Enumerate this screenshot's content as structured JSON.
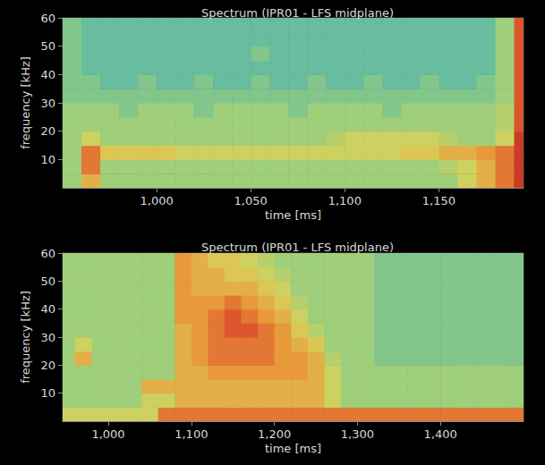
{
  "chart_data": [
    {
      "type": "heatmap",
      "title": "Spectrum (IPR01 - LFS midplane)",
      "x_label": "time [ms]",
      "y_label": "frequency [kHz]",
      "xlim": [
        950,
        1195
      ],
      "ylim": [
        0,
        60
      ],
      "xticks": [
        1000,
        1050,
        1100,
        1150
      ],
      "yticks": [
        10,
        20,
        30,
        40,
        50,
        60
      ],
      "zlim": [
        0,
        10
      ],
      "x_edges": [
        950,
        960,
        970,
        980,
        990,
        1000,
        1010,
        1020,
        1030,
        1040,
        1050,
        1060,
        1070,
        1080,
        1090,
        1100,
        1110,
        1120,
        1130,
        1140,
        1150,
        1160,
        1170,
        1180,
        1190,
        1195
      ],
      "y_edges": [
        0,
        5,
        10,
        15,
        20,
        25,
        30,
        35,
        40,
        45,
        50,
        55,
        60
      ],
      "z": [
        [
          5,
          7,
          5,
          5,
          5,
          5,
          5,
          5,
          5,
          5,
          5,
          5,
          5,
          5,
          5,
          5,
          5,
          5,
          5,
          5,
          5,
          6,
          7,
          8,
          9
        ],
        [
          5,
          8,
          5,
          5,
          5,
          5,
          5,
          5,
          5,
          5,
          5,
          5,
          5,
          5,
          5,
          5,
          5,
          5,
          5,
          5,
          5.5,
          6,
          7,
          8,
          9
        ],
        [
          5,
          8,
          6.5,
          6.5,
          6.5,
          6.5,
          6,
          6,
          6,
          6,
          6,
          6,
          6,
          6,
          6,
          6,
          6,
          6,
          6.5,
          6.5,
          7,
          7,
          7.5,
          8,
          9
        ],
        [
          5,
          6,
          5,
          5,
          5,
          5,
          5,
          5,
          5,
          5,
          5,
          5,
          5,
          5,
          5.5,
          6,
          6,
          6,
          6,
          6,
          5.5,
          5,
          5,
          6,
          9
        ],
        [
          5,
          5,
          5,
          5,
          5,
          5,
          5,
          5,
          5,
          5,
          5,
          5,
          5,
          5,
          5,
          5,
          5,
          5,
          5,
          5,
          5,
          5,
          5,
          5.5,
          8.5
        ],
        [
          5,
          5,
          5,
          4.5,
          5,
          5,
          5,
          4.5,
          5,
          5,
          5,
          5,
          4.5,
          5,
          5,
          5,
          5,
          4.5,
          5,
          5,
          5,
          5,
          5,
          5.5,
          8.5
        ],
        [
          4.5,
          4.5,
          4.5,
          4.5,
          4.5,
          4.5,
          4.5,
          4.5,
          4.5,
          4.5,
          4.5,
          4.5,
          4.5,
          4.5,
          4.5,
          4.5,
          4.5,
          4.5,
          4.5,
          4.5,
          4.5,
          4.5,
          4.5,
          5,
          8.5
        ],
        [
          4.5,
          4.5,
          4,
          4,
          4.5,
          4,
          4,
          4.5,
          4,
          4,
          4.5,
          4,
          4,
          4.5,
          4,
          4,
          4.5,
          4,
          4,
          4.5,
          4,
          4,
          4.5,
          5,
          8.5
        ],
        [
          4.5,
          4,
          4,
          4,
          4,
          4,
          4,
          4,
          4,
          4,
          4,
          4,
          4,
          4,
          4,
          4,
          4,
          4,
          4,
          4,
          4,
          4,
          4,
          5,
          8.5
        ],
        [
          4.5,
          4,
          4,
          4,
          4,
          4,
          4,
          4,
          4,
          4,
          4.5,
          4,
          4,
          4,
          4,
          4,
          4,
          4,
          4,
          4,
          4,
          4,
          4,
          5,
          8.5
        ],
        [
          4.5,
          4,
          4,
          4,
          4,
          4,
          4,
          4,
          4,
          4,
          4,
          4,
          4,
          4,
          4,
          4,
          4,
          4,
          4,
          4,
          4,
          4,
          4,
          5,
          8.5
        ],
        [
          4.5,
          4,
          4,
          4,
          4,
          4,
          4,
          4,
          4,
          4,
          4,
          4,
          4,
          4,
          4,
          4,
          4,
          4,
          4,
          4,
          4,
          4,
          4,
          5,
          8.5
        ]
      ]
    },
    {
      "type": "heatmap",
      "title": "Spectrum (IPR01 - LFS midplane)",
      "x_label": "time [ms]",
      "y_label": "frequency [kHz]",
      "xlim": [
        945,
        1500
      ],
      "ylim": [
        0,
        60
      ],
      "xticks": [
        1000,
        1100,
        1200,
        1300,
        1400
      ],
      "yticks": [
        10,
        20,
        30,
        40,
        50,
        60
      ],
      "zlim": [
        0,
        10
      ],
      "x_edges": [
        945,
        960,
        980,
        1000,
        1020,
        1040,
        1060,
        1080,
        1100,
        1120,
        1140,
        1160,
        1180,
        1200,
        1220,
        1240,
        1260,
        1280,
        1300,
        1320,
        1340,
        1360,
        1380,
        1400,
        1420,
        1440,
        1460,
        1480,
        1500
      ],
      "y_edges": [
        0,
        5,
        10,
        15,
        20,
        25,
        30,
        35,
        40,
        45,
        50,
        55,
        60
      ],
      "z": [
        [
          6,
          6,
          6,
          6,
          6,
          6,
          8,
          8,
          8,
          8,
          8,
          8,
          8,
          8,
          8,
          8,
          8,
          8,
          8,
          8,
          8,
          8,
          8,
          8,
          8,
          8,
          8,
          8
        ],
        [
          5,
          5,
          5,
          5,
          5,
          6,
          6,
          7,
          7,
          7,
          7,
          7,
          7,
          7,
          7,
          7,
          6,
          5,
          5,
          5,
          5,
          5,
          5,
          5,
          5,
          5,
          5,
          5
        ],
        [
          5,
          5,
          5,
          5,
          5,
          7,
          7,
          7,
          7,
          7,
          7,
          7,
          7,
          7,
          7,
          7,
          6,
          5,
          5,
          5,
          5,
          5,
          5,
          5,
          5,
          5,
          5,
          5
        ],
        [
          5,
          5,
          5,
          5,
          5,
          5,
          5,
          7,
          7,
          7.5,
          7.5,
          7.5,
          7.5,
          7.5,
          7.5,
          7,
          6,
          5,
          5,
          5,
          5,
          5,
          5,
          5,
          5,
          5,
          5,
          5
        ],
        [
          5,
          7,
          5,
          5,
          5,
          5,
          5,
          7,
          7.5,
          8,
          8,
          8,
          8,
          7.5,
          7.5,
          7,
          5.5,
          5,
          5,
          4.5,
          4.5,
          4.5,
          4.5,
          4.5,
          4.5,
          4.5,
          4.5,
          4.5
        ],
        [
          5,
          6,
          5,
          5,
          5,
          5,
          5,
          7,
          7.5,
          8,
          8,
          8,
          8,
          7.5,
          7,
          6.5,
          5,
          5,
          5,
          4.5,
          4.5,
          4.5,
          4.5,
          4.5,
          4.5,
          4.5,
          4.5,
          4.5
        ],
        [
          5,
          5,
          5,
          5,
          5,
          5,
          5,
          7,
          7.5,
          8,
          8.5,
          8.5,
          8,
          7.5,
          6.5,
          5.5,
          5,
          5,
          5,
          4.5,
          4.5,
          4.5,
          4.5,
          4.5,
          4.5,
          4.5,
          4.5,
          4.5
        ],
        [
          5,
          5,
          5,
          5,
          5,
          5,
          5,
          7.5,
          7.5,
          8,
          8.5,
          8,
          7.5,
          7,
          6,
          5,
          5,
          5,
          5,
          4.5,
          4.5,
          4.5,
          4.5,
          4.5,
          4.5,
          4.5,
          4.5,
          4.5
        ],
        [
          5,
          5,
          5,
          5,
          5,
          5,
          5,
          7.5,
          7.5,
          7.5,
          8,
          7.5,
          7,
          6.5,
          5.5,
          5,
          5,
          5,
          5,
          4.5,
          4.5,
          4.5,
          4.5,
          4.5,
          4.5,
          4.5,
          4.5,
          4.5
        ],
        [
          5,
          5,
          5,
          5,
          5,
          5,
          5,
          7.5,
          7,
          7,
          7,
          7,
          6.5,
          6,
          5,
          5,
          5,
          5,
          5,
          4.5,
          4.5,
          4.5,
          4.5,
          4.5,
          4.5,
          4.5,
          4.5,
          4.5
        ],
        [
          5,
          5,
          5,
          5,
          5,
          5,
          5,
          7.5,
          7,
          7,
          6.5,
          6.5,
          6,
          5.5,
          5,
          5,
          5,
          5,
          5,
          4.5,
          4.5,
          4.5,
          4.5,
          4.5,
          4.5,
          4.5,
          4.5,
          4.5
        ],
        [
          5,
          5,
          5,
          5,
          5,
          5,
          5,
          7.5,
          7,
          6.5,
          6.5,
          6,
          5.5,
          5,
          5,
          5,
          5,
          5,
          5,
          4.5,
          4.5,
          4.5,
          4.5,
          4.5,
          4.5,
          4.5,
          4.5,
          4.5
        ]
      ]
    }
  ]
}
